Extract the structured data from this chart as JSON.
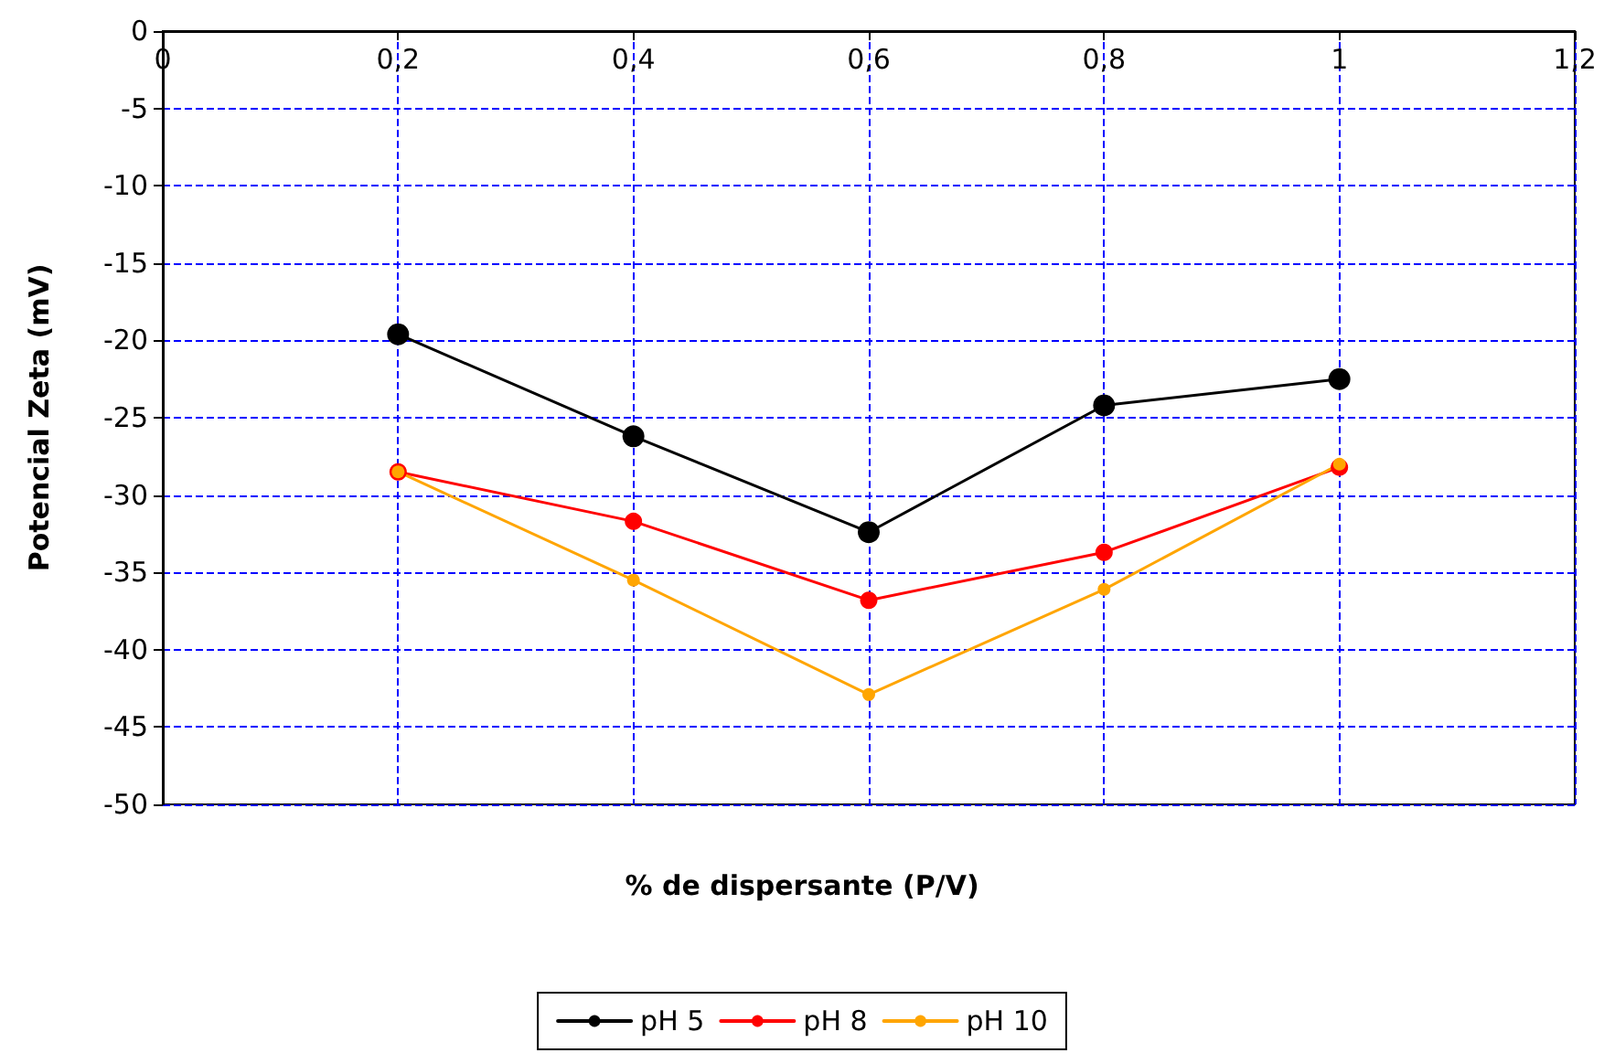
{
  "chart_data": {
    "type": "line",
    "xlabel": "% de dispersante (P/V)",
    "ylabel": "Potencial Zeta (mV)",
    "x": [
      0.2,
      0.4,
      0.6,
      0.8,
      1
    ],
    "series": [
      {
        "name": "pH 5",
        "color": "#000000",
        "values": [
          -19.6,
          -26.2,
          -32.4,
          -24.2,
          -22.5
        ]
      },
      {
        "name": "pH 8",
        "color": "#ff0000",
        "values": [
          -28.5,
          -31.7,
          -36.8,
          -33.7,
          -28.2
        ]
      },
      {
        "name": "pH 10",
        "color": "#ffa500",
        "values": [
          -28.5,
          -35.5,
          -42.9,
          -36.1,
          -28.0
        ]
      }
    ],
    "xlim": [
      0,
      1.2
    ],
    "xticks": [
      0,
      {
        "value": 0.2,
        "label": "0,2"
      },
      {
        "value": 0.4,
        "label": "0,4"
      },
      {
        "value": 0.6,
        "label": "0,6"
      },
      {
        "value": 0.8,
        "label": "0,8"
      },
      1,
      {
        "value": 1.2,
        "label": "1,2"
      }
    ],
    "ylim": [
      -50,
      0
    ],
    "yticks": [
      -50,
      -45,
      -40,
      -35,
      -30,
      -25,
      -20,
      -15,
      -10,
      -5,
      0
    ],
    "grid": true,
    "legend": "bottom",
    "marker": "circle",
    "line_style": "solid"
  }
}
